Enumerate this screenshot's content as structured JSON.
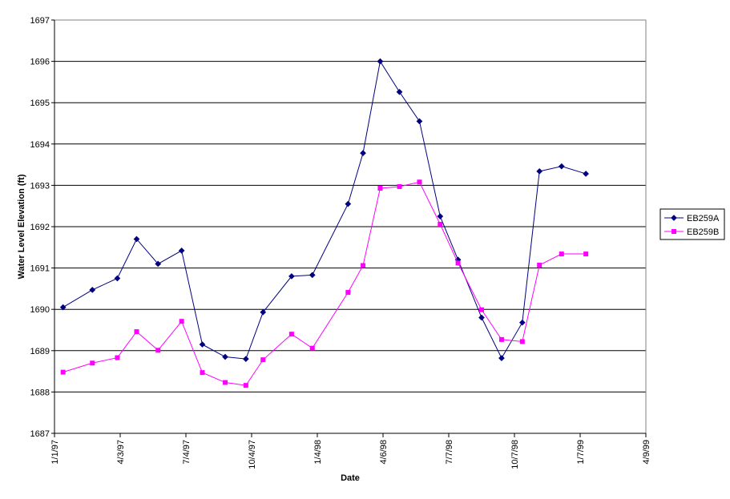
{
  "chart_data": {
    "type": "line",
    "title": "",
    "xlabel": "Date",
    "ylabel": "Water Level Elevation (ft)",
    "ylim": [
      1687,
      1697
    ],
    "y_ticks": [
      1687,
      1688,
      1689,
      1690,
      1691,
      1692,
      1693,
      1694,
      1695,
      1696,
      1697
    ],
    "xlim": [
      "1997-01-01",
      "1999-04-09"
    ],
    "x_ticks": [
      {
        "date": "1997-01-01",
        "label": "1/1/97"
      },
      {
        "date": "1997-04-03",
        "label": "4/3/97"
      },
      {
        "date": "1997-07-04",
        "label": "7/4/97"
      },
      {
        "date": "1997-10-04",
        "label": "10/4/97"
      },
      {
        "date": "1998-01-04",
        "label": "1/4/98"
      },
      {
        "date": "1998-04-06",
        "label": "4/6/98"
      },
      {
        "date": "1998-07-07",
        "label": "7/7/98"
      },
      {
        "date": "1998-10-07",
        "label": "10/7/98"
      },
      {
        "date": "1999-01-07",
        "label": "1/7/99"
      },
      {
        "date": "1999-04-09",
        "label": "4/9/99"
      }
    ],
    "grid": "horizontal",
    "legend_position": "right",
    "colors": {
      "EB259A": "#000080",
      "EB259B": "#ff00ff",
      "grid": "#000000",
      "background": "#ffffff"
    },
    "series": [
      {
        "name": "EB259A",
        "marker": "diamond",
        "color": "#000080",
        "points": [
          [
            "1997-01-13",
            1690.05
          ],
          [
            "1997-02-23",
            1690.47
          ],
          [
            "1997-03-30",
            1690.75
          ],
          [
            "1997-04-26",
            1691.7
          ],
          [
            "1997-05-26",
            1691.1
          ],
          [
            "1997-06-28",
            1691.42
          ],
          [
            "1997-07-27",
            1689.15
          ],
          [
            "1997-08-28",
            1688.85
          ],
          [
            "1997-09-26",
            1688.8
          ],
          [
            "1997-10-20",
            1689.93
          ],
          [
            "1997-11-29",
            1690.8
          ],
          [
            "1997-12-28",
            1690.83
          ],
          [
            "1998-02-16",
            1692.55
          ],
          [
            "1998-03-09",
            1693.78
          ],
          [
            "1998-04-02",
            1696.0
          ],
          [
            "1998-04-29",
            1695.26
          ],
          [
            "1998-05-27",
            1694.55
          ],
          [
            "1998-06-25",
            1692.25
          ],
          [
            "1998-07-20",
            1691.2
          ],
          [
            "1998-08-22",
            1689.8
          ],
          [
            "1998-09-19",
            1688.82
          ],
          [
            "1998-10-18",
            1689.68
          ],
          [
            "1998-11-11",
            1693.34
          ],
          [
            "1998-12-12",
            1693.46
          ],
          [
            "1999-01-15",
            1693.28
          ]
        ]
      },
      {
        "name": "EB259B",
        "marker": "square",
        "color": "#ff00ff",
        "points": [
          [
            "1997-01-13",
            1688.48
          ],
          [
            "1997-02-23",
            1688.7
          ],
          [
            "1997-03-30",
            1688.83
          ],
          [
            "1997-04-26",
            1689.46
          ],
          [
            "1997-05-26",
            1689.01
          ],
          [
            "1997-06-28",
            1689.71
          ],
          [
            "1997-07-27",
            1688.47
          ],
          [
            "1997-08-28",
            1688.23
          ],
          [
            "1997-09-26",
            1688.16
          ],
          [
            "1997-10-20",
            1688.78
          ],
          [
            "1997-11-29",
            1689.4
          ],
          [
            "1997-12-28",
            1689.06
          ],
          [
            "1998-02-16",
            1690.41
          ],
          [
            "1998-03-09",
            1691.06
          ],
          [
            "1998-04-02",
            1692.93
          ],
          [
            "1998-04-29",
            1692.97
          ],
          [
            "1998-05-27",
            1693.08
          ],
          [
            "1998-06-25",
            1692.06
          ],
          [
            "1998-07-20",
            1691.12
          ],
          [
            "1998-08-22",
            1689.99
          ],
          [
            "1998-09-19",
            1689.27
          ],
          [
            "1998-10-18",
            1689.22
          ],
          [
            "1998-11-11",
            1691.07
          ],
          [
            "1998-12-12",
            1691.34
          ],
          [
            "1999-01-15",
            1691.34
          ]
        ]
      }
    ]
  }
}
